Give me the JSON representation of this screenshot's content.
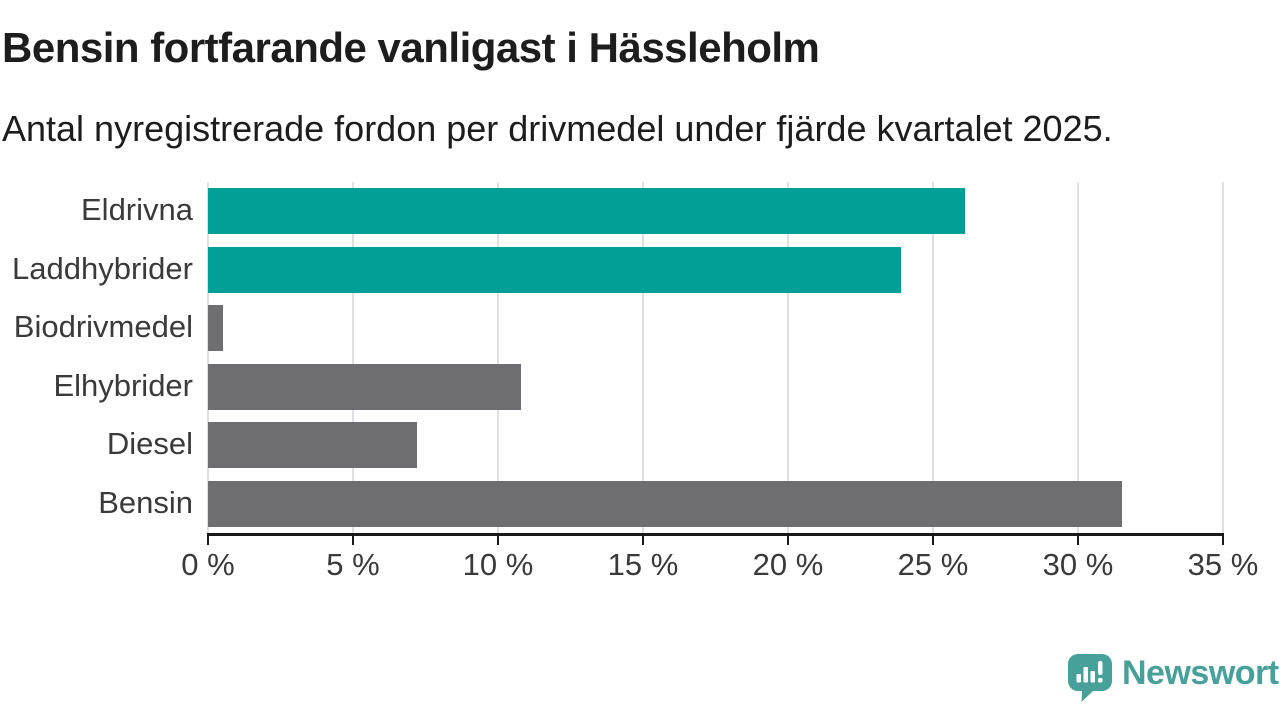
{
  "header": {
    "title": "Bensin fortfarande vanligast i Hässleholm",
    "subtitle": "Antal nyregistrerade fordon per drivmedel under fjärde kvartalet 2025."
  },
  "chart_data": {
    "type": "bar",
    "orientation": "horizontal",
    "title": "Bensin fortfarande vanligast i Hässleholm",
    "subtitle": "Antal nyregistrerade fordon per drivmedel under fjärde kvartalet 2025.",
    "categories": [
      "Eldrivna",
      "Laddhybrider",
      "Biodrivmedel",
      "Elhybrider",
      "Diesel",
      "Bensin"
    ],
    "values": [
      26.1,
      23.9,
      0.5,
      10.8,
      7.2,
      31.5
    ],
    "unit": "%",
    "xlim": [
      0,
      35
    ],
    "x_ticks": [
      0,
      5,
      10,
      15,
      20,
      25,
      30,
      35
    ],
    "x_tick_labels": [
      "0 %",
      "5 %",
      "10 %",
      "15 %",
      "20 %",
      "25 %",
      "30 %",
      "35 %"
    ],
    "bar_colors": [
      "#00a096",
      "#00a096",
      "#6d6d72",
      "#6d6d72",
      "#6d6d72",
      "#6d6d72"
    ],
    "highlight_color": "#00a096",
    "default_color": "#6d6d72",
    "grid": true,
    "gridline_color": "#e0e0e0",
    "axis_color": "#1a1a1a",
    "legend": "none",
    "ylabel": "",
    "xlabel": ""
  },
  "footer": {
    "brand": "Newsworthy",
    "brand_color": "#47a099",
    "logo_icon": "newsworthy-speech-bubble-bar-chart-icon"
  }
}
